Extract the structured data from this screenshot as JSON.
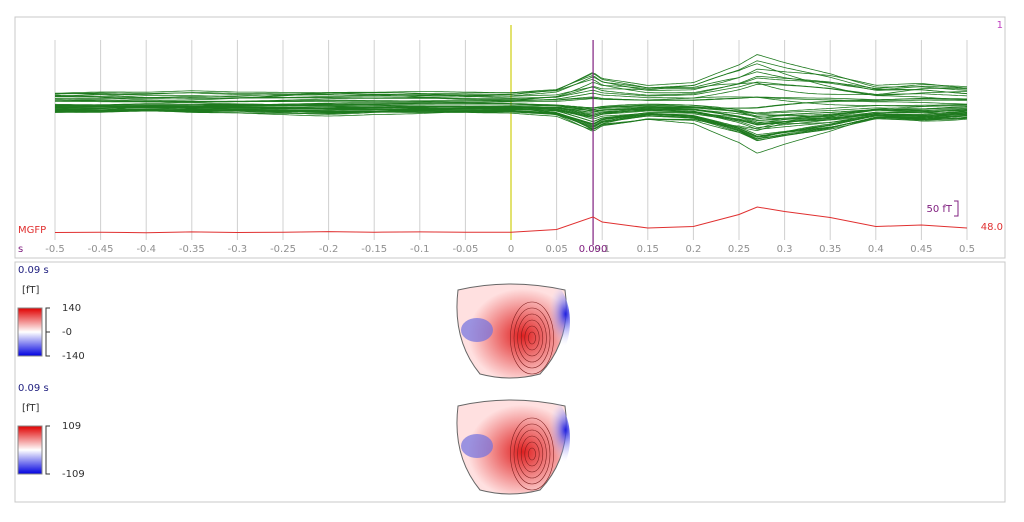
{
  "chart_data": {
    "type": "line",
    "page_number": "1",
    "x_unit": "s",
    "series_label": "MGFP",
    "scale_value": "48.0",
    "scale_bar": "50 fT",
    "scale_bar_length": 50,
    "cursor": {
      "value": 0.09,
      "label": "0.090"
    },
    "stim": 0,
    "xlim": [
      -0.5,
      0.5
    ],
    "xticks": [
      -0.5,
      -0.45,
      -0.4,
      -0.35,
      -0.3,
      -0.25,
      -0.2,
      -0.15,
      -0.1,
      -0.05,
      0,
      0.05,
      0.1,
      0.15,
      0.2,
      0.25,
      0.3,
      0.35,
      0.4,
      0.45,
      0.5
    ],
    "x": [
      -0.5,
      -0.45,
      -0.4,
      -0.35,
      -0.3,
      -0.25,
      -0.2,
      -0.15,
      -0.1,
      -0.05,
      0,
      0.05,
      0.09,
      0.1,
      0.15,
      0.2,
      0.25,
      0.27,
      0.3,
      0.35,
      0.4,
      0.45,
      0.5
    ],
    "series": [
      {
        "name": "MGFP",
        "color": "#e03030",
        "values": [
          25,
          26,
          24,
          27,
          25,
          26,
          28,
          26,
          27,
          26,
          26,
          35,
          77,
          60,
          40,
          45,
          85,
          110,
          95,
          75,
          45,
          50,
          40
        ]
      }
    ]
  },
  "topomaps": [
    {
      "time_label": "0.09 s",
      "unit": "[fT]",
      "colorbar_ticks": [
        140,
        {
          "value": 0,
          "label": "-0"
        },
        -140
      ]
    },
    {
      "time_label": "0.09 s",
      "unit": "[fT]",
      "colorbar_ticks": [
        109,
        -109
      ]
    }
  ]
}
